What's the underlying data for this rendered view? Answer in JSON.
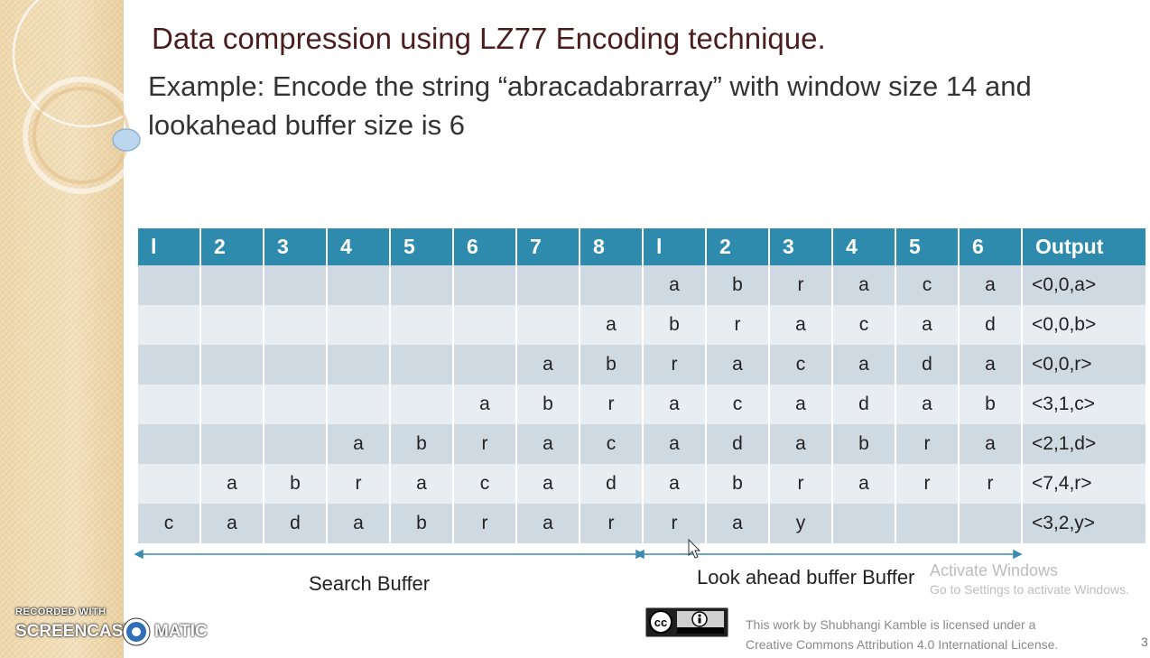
{
  "title": "Data compression using LZ77 Encoding technique.",
  "subtitle": "Example: Encode the string “abracadabrarray” with window size 14 and lookahead buffer size is 6",
  "table": {
    "headers": [
      "l",
      "2",
      "3",
      "4",
      "5",
      "6",
      "7",
      "8",
      "l",
      "2",
      "3",
      "4",
      "5",
      "6",
      "Output"
    ],
    "rows": [
      [
        "",
        "",
        "",
        "",
        "",
        "",
        "",
        "",
        "a",
        "b",
        "r",
        "a",
        "c",
        "a",
        "<0,0,a>"
      ],
      [
        "",
        "",
        "",
        "",
        "",
        "",
        "",
        "a",
        "b",
        "r",
        "a",
        "c",
        "a",
        "d",
        "<0,0,b>"
      ],
      [
        "",
        "",
        "",
        "",
        "",
        "",
        "a",
        "b",
        "r",
        "a",
        "c",
        "a",
        "d",
        "a",
        "<0,0,r>"
      ],
      [
        "",
        "",
        "",
        "",
        "",
        "a",
        "b",
        "r",
        "a",
        "c",
        "a",
        "d",
        "a",
        "b",
        "<3,1,c>"
      ],
      [
        "",
        "",
        "",
        "a",
        "b",
        "r",
        "a",
        "c",
        "a",
        "d",
        "a",
        "b",
        "r",
        "a",
        "<2,1,d>"
      ],
      [
        "",
        "a",
        "b",
        "r",
        "a",
        "c",
        "a",
        "d",
        "a",
        "b",
        "r",
        "a",
        "r",
        "r",
        "<7,4,r>"
      ],
      [
        "c",
        "a",
        "d",
        "a",
        "b",
        "r",
        "a",
        "r",
        "r",
        "a",
        "y",
        "",
        "",
        "",
        "<3,2,y>"
      ]
    ]
  },
  "labels": {
    "search_buffer": "Search Buffer",
    "lookahead_buffer": "Look ahead buffer Buffer"
  },
  "watermark": {
    "line1": "Activate Windows",
    "line2": "Go to Settings to activate Windows."
  },
  "license": {
    "line1": "This work by Shubhangi Kamble is licensed under a",
    "line2": "Creative Commons Attribution 4.0 International License.",
    "badge_icon": "cc-by-badge-icon"
  },
  "page_number": "3",
  "recorder": {
    "top": "RECORDED WITH",
    "word1": "SCREENCAST",
    "word2": "MATIC"
  },
  "colors": {
    "header_bg": "#2e8bad",
    "row_dark": "#cfd9e2",
    "row_light": "#e8edf1",
    "title_color": "#4a1e1e",
    "arrow": "#3b8ab0"
  }
}
